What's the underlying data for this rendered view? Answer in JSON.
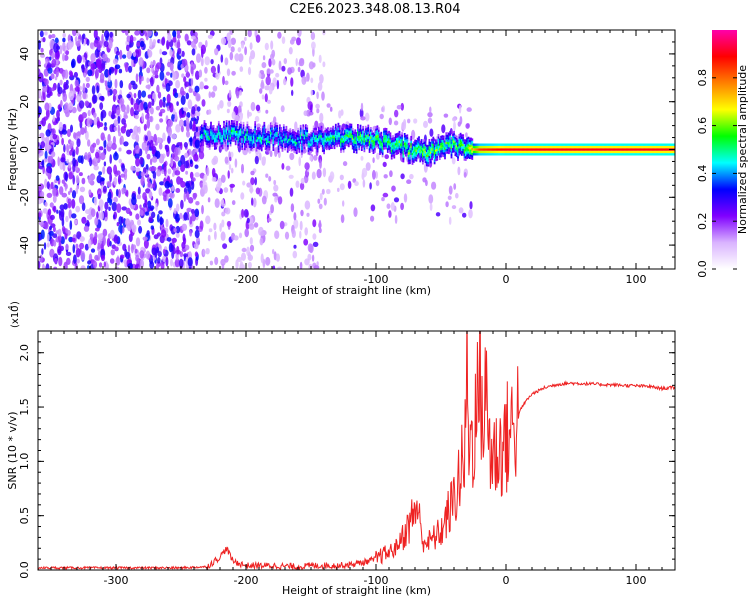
{
  "title": "C2E6.2023.348.08.13.R04",
  "chart_data": [
    {
      "type": "heatmap",
      "xlabel": "Height of straight line (km)",
      "ylabel": "Frequency (Hz)",
      "xlim": [
        -360,
        130
      ],
      "ylim": [
        -50,
        50
      ],
      "xticks": [
        -300,
        -200,
        -100,
        0,
        100
      ],
      "yticks": [
        -40,
        -20,
        0,
        20,
        40
      ],
      "grid": false,
      "colorbar": {
        "label": "Normalized spectral amplitude",
        "range": [
          0.0,
          1.0
        ],
        "ticks": [
          0.0,
          0.2,
          0.4,
          0.6,
          0.8
        ],
        "tick_labels": [
          "0.0",
          "0.2",
          "0.4",
          "0.6",
          "0.8"
        ],
        "colormap": [
          "#ffffff",
          "#d9b3ff",
          "#8000ff",
          "#0000ff",
          "#00ffff",
          "#00ff00",
          "#ffff00",
          "#ff8000",
          "#ff0000",
          "#ff00aa"
        ]
      },
      "signal_track": [
        {
          "x": -235,
          "freq": 6,
          "amp": 0.45
        },
        {
          "x": -210,
          "freq": 6,
          "amp": 0.5
        },
        {
          "x": -180,
          "freq": 5,
          "amp": 0.45
        },
        {
          "x": -150,
          "freq": 4,
          "amp": 0.45
        },
        {
          "x": -120,
          "freq": 5,
          "amp": 0.55
        },
        {
          "x": -100,
          "freq": 4,
          "amp": 0.55
        },
        {
          "x": -80,
          "freq": 1,
          "amp": 0.55
        },
        {
          "x": -60,
          "freq": -2,
          "amp": 0.6
        },
        {
          "x": -45,
          "freq": 2,
          "amp": 0.55
        },
        {
          "x": -30,
          "freq": 0,
          "amp": 0.6
        },
        {
          "x": -20,
          "freq": 0,
          "amp": 0.85
        },
        {
          "x": 0,
          "freq": 0,
          "amp": 0.9
        },
        {
          "x": 50,
          "freq": 0,
          "amp": 0.9
        },
        {
          "x": 130,
          "freq": 0,
          "amp": 0.9
        }
      ],
      "noise_regions": [
        {
          "x_range": [
            -360,
            -235
          ],
          "freq_range": [
            -50,
            50
          ],
          "density": "high"
        },
        {
          "x_range": [
            -235,
            -140
          ],
          "freq_range": [
            -50,
            50
          ],
          "density": "medium"
        },
        {
          "x_range": [
            -140,
            -25
          ],
          "freq_range": [
            -30,
            20
          ],
          "density": "low"
        }
      ]
    },
    {
      "type": "line",
      "xlabel": "Height of straight line (km)",
      "ylabel": "SNR (10 * v/v)",
      "yscale_label": "(x10",
      "yscale_exp": "4",
      "yscale_close": ")",
      "xlim": [
        -360,
        130
      ],
      "ylim": [
        0,
        2.2
      ],
      "xticks": [
        -300,
        -200,
        -100,
        0,
        100
      ],
      "yticks": [
        0.0,
        0.5,
        1.0,
        1.5,
        2.0
      ],
      "ytick_labels": [
        "0.0",
        "0.5",
        "1.0",
        "1.5",
        "2.0"
      ],
      "grid": false,
      "series": [
        {
          "color": "#ee2222",
          "points": [
            [
              -360,
              0.02
            ],
            [
              -300,
              0.02
            ],
            [
              -250,
              0.02
            ],
            [
              -230,
              0.03
            ],
            [
              -220,
              0.12
            ],
            [
              -215,
              0.2
            ],
            [
              -210,
              0.08
            ],
            [
              -200,
              0.04
            ],
            [
              -180,
              0.04
            ],
            [
              -160,
              0.03
            ],
            [
              -150,
              0.04
            ],
            [
              -130,
              0.04
            ],
            [
              -120,
              0.05
            ],
            [
              -110,
              0.07
            ],
            [
              -100,
              0.1
            ],
            [
              -95,
              0.14
            ],
            [
              -90,
              0.16
            ],
            [
              -85,
              0.2
            ],
            [
              -80,
              0.3
            ],
            [
              -75,
              0.4
            ],
            [
              -70,
              0.55
            ],
            [
              -68,
              0.6
            ],
            [
              -65,
              0.3
            ],
            [
              -60,
              0.25
            ],
            [
              -55,
              0.3
            ],
            [
              -50,
              0.35
            ],
            [
              -45,
              0.5
            ],
            [
              -40,
              0.65
            ],
            [
              -35,
              0.9
            ],
            [
              -32,
              1.0
            ],
            [
              -30,
              1.8
            ],
            [
              -28,
              1.1
            ],
            [
              -25,
              1.3
            ],
            [
              -22,
              1.5
            ],
            [
              -20,
              2.1
            ],
            [
              -18,
              1.3
            ],
            [
              -15,
              1.6
            ],
            [
              -12,
              1.1
            ],
            [
              -10,
              1.05
            ],
            [
              -5,
              1.1
            ],
            [
              0,
              1.2
            ],
            [
              5,
              1.3
            ],
            [
              10,
              1.45
            ],
            [
              15,
              1.55
            ],
            [
              20,
              1.62
            ],
            [
              30,
              1.68
            ],
            [
              40,
              1.71
            ],
            [
              50,
              1.72
            ],
            [
              70,
              1.71
            ],
            [
              90,
              1.7
            ],
            [
              110,
              1.69
            ],
            [
              120,
              1.67
            ],
            [
              130,
              1.68
            ]
          ]
        }
      ]
    }
  ]
}
